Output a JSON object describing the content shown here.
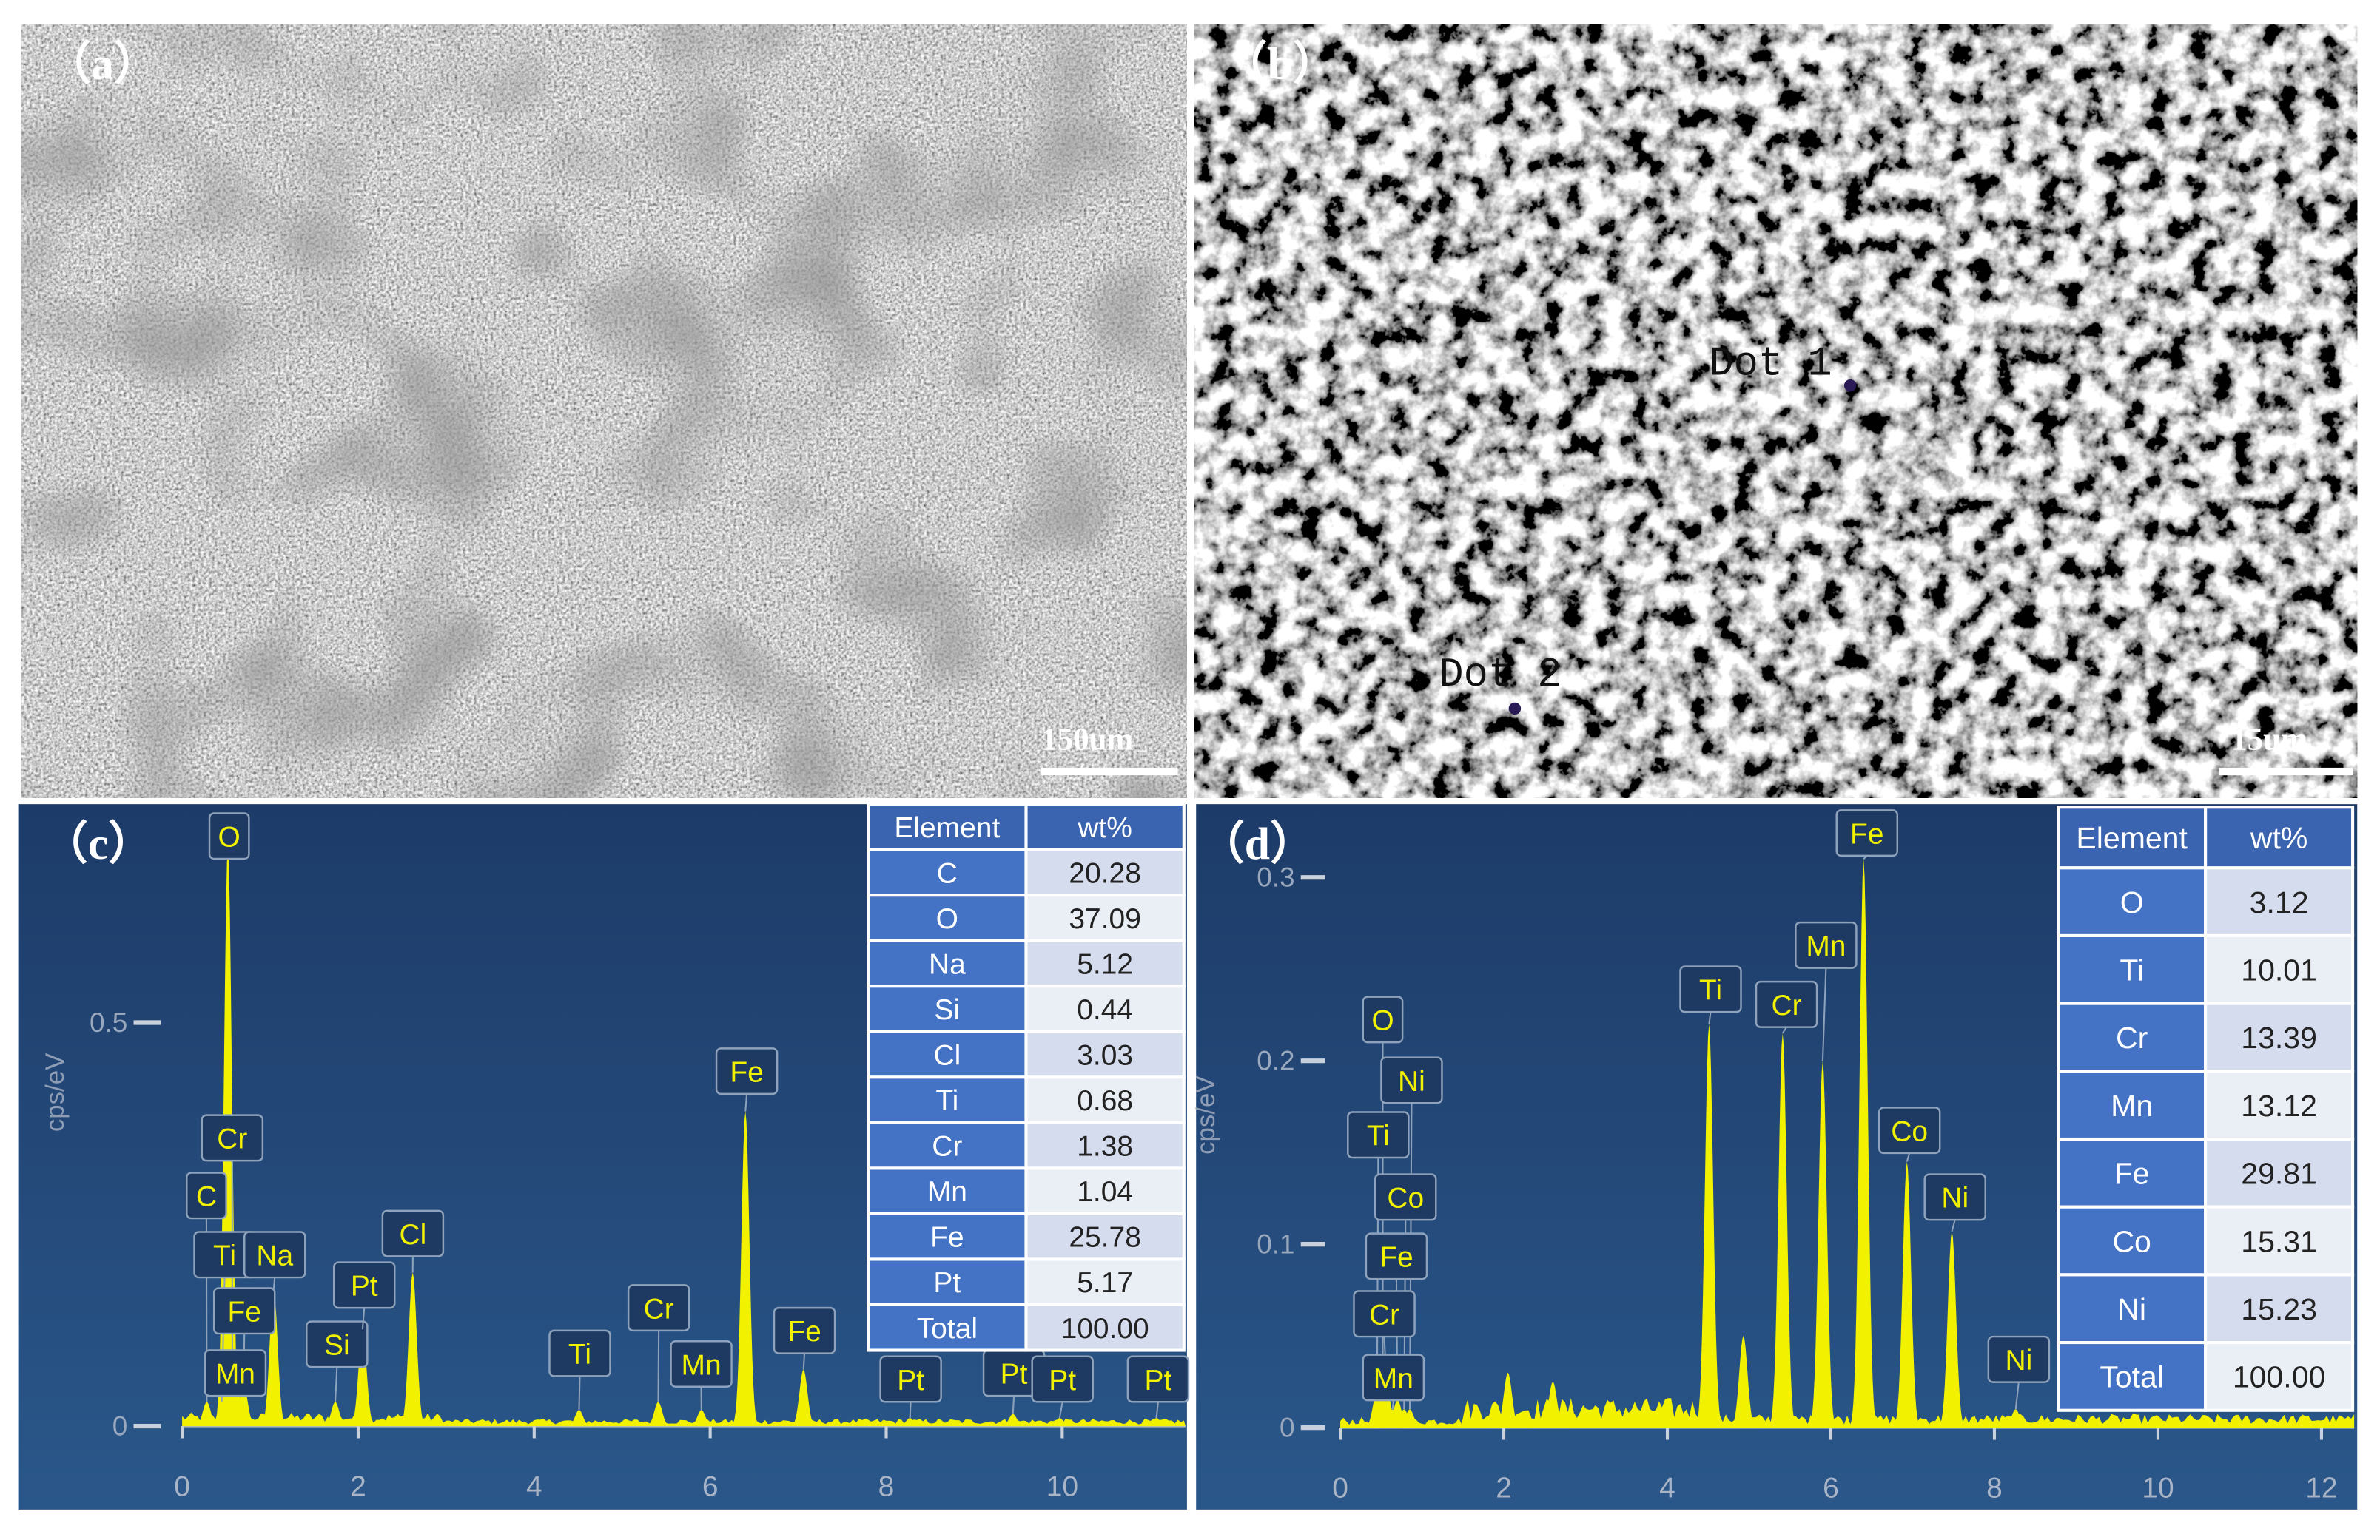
{
  "images": [
    {
      "label": "（a）",
      "scale_bar": "150um"
    },
    {
      "label": "（b）",
      "scale_bar": "15um",
      "markers": [
        "Dot 1",
        "Dot 2"
      ]
    }
  ],
  "chart_data": [
    {
      "type": "spectrum",
      "panel_label": "（c）",
      "y_label": "cps/eV",
      "xlim": [
        0,
        11.4
      ],
      "xticks": [
        0,
        2,
        4,
        6,
        8,
        10
      ],
      "ylim": [
        0,
        0.75
      ],
      "yticks": [
        0,
        0.5
      ],
      "labels": [
        "O",
        "Cr",
        "C",
        "Ti",
        "Na",
        "Fe",
        "Mn",
        "Si",
        "Pt",
        "Cl",
        "Ti",
        "Cr",
        "Mn",
        "Fe",
        "Fe",
        "Pt",
        "Pt",
        "Pt",
        "Pt"
      ],
      "x": [
        0.52,
        0.57,
        0.28,
        0.45,
        1.04,
        0.7,
        0.64,
        1.74,
        2.05,
        2.62,
        4.51,
        5.41,
        5.9,
        6.4,
        7.06,
        8.27,
        9.44,
        9.97,
        11.07
      ],
      "values": [
        0.72,
        0.05,
        0.03,
        0.03,
        0.17,
        0.05,
        0.04,
        0.03,
        0.12,
        0.19,
        0.02,
        0.03,
        0.02,
        0.39,
        0.07,
        0.01,
        0.015,
        0.01,
        0.01
      ],
      "color": "#f2f200",
      "table": {
        "columns": [
          "Element",
          "wt%"
        ],
        "rows": [
          [
            "C",
            "20.28"
          ],
          [
            "O",
            "37.09"
          ],
          [
            "Na",
            "5.12"
          ],
          [
            "Si",
            "0.44"
          ],
          [
            "Cl",
            "3.03"
          ],
          [
            "Ti",
            "0.68"
          ],
          [
            "Cr",
            "1.38"
          ],
          [
            "Mn",
            "1.04"
          ],
          [
            "Fe",
            "25.78"
          ],
          [
            "Pt",
            "5.17"
          ],
          [
            "Total",
            "100.00"
          ]
        ]
      }
    },
    {
      "type": "spectrum",
      "panel_label": "（d）",
      "y_label": "cps/eV",
      "xlim": [
        0,
        12.4
      ],
      "xticks": [
        0,
        2,
        4,
        6,
        8,
        10,
        12
      ],
      "ylim": [
        0,
        0.33
      ],
      "yticks": [
        0,
        0.1,
        0.2,
        0.3
      ],
      "labels": [
        "O",
        "Ni",
        "Ti",
        "Co",
        "Fe",
        "Cr",
        "Mn",
        "Ti",
        "Cr",
        "Mn",
        "Fe",
        "Co",
        "Ni",
        "Ni",
        null,
        null,
        null
      ],
      "x": [
        0.52,
        0.85,
        0.45,
        0.78,
        0.7,
        0.57,
        0.64,
        4.51,
        5.41,
        5.9,
        6.4,
        6.93,
        7.48,
        8.26,
        4.93,
        2.05,
        2.6
      ],
      "values": [
        0.02,
        0.01,
        0.02,
        0.01,
        0.015,
        0.02,
        0.01,
        0.22,
        0.215,
        0.2,
        0.31,
        0.145,
        0.107,
        0.01,
        0.05,
        0.03,
        0.025
      ],
      "color": "#f2f200",
      "table": {
        "columns": [
          "Element",
          "wt%"
        ],
        "rows": [
          [
            "O",
            "3.12"
          ],
          [
            "Ti",
            "10.01"
          ],
          [
            "Cr",
            "13.39"
          ],
          [
            "Mn",
            "13.12"
          ],
          [
            "Fe",
            "29.81"
          ],
          [
            "Co",
            "15.31"
          ],
          [
            "Ni",
            "15.23"
          ],
          [
            "Total",
            "100.00"
          ]
        ]
      }
    }
  ]
}
